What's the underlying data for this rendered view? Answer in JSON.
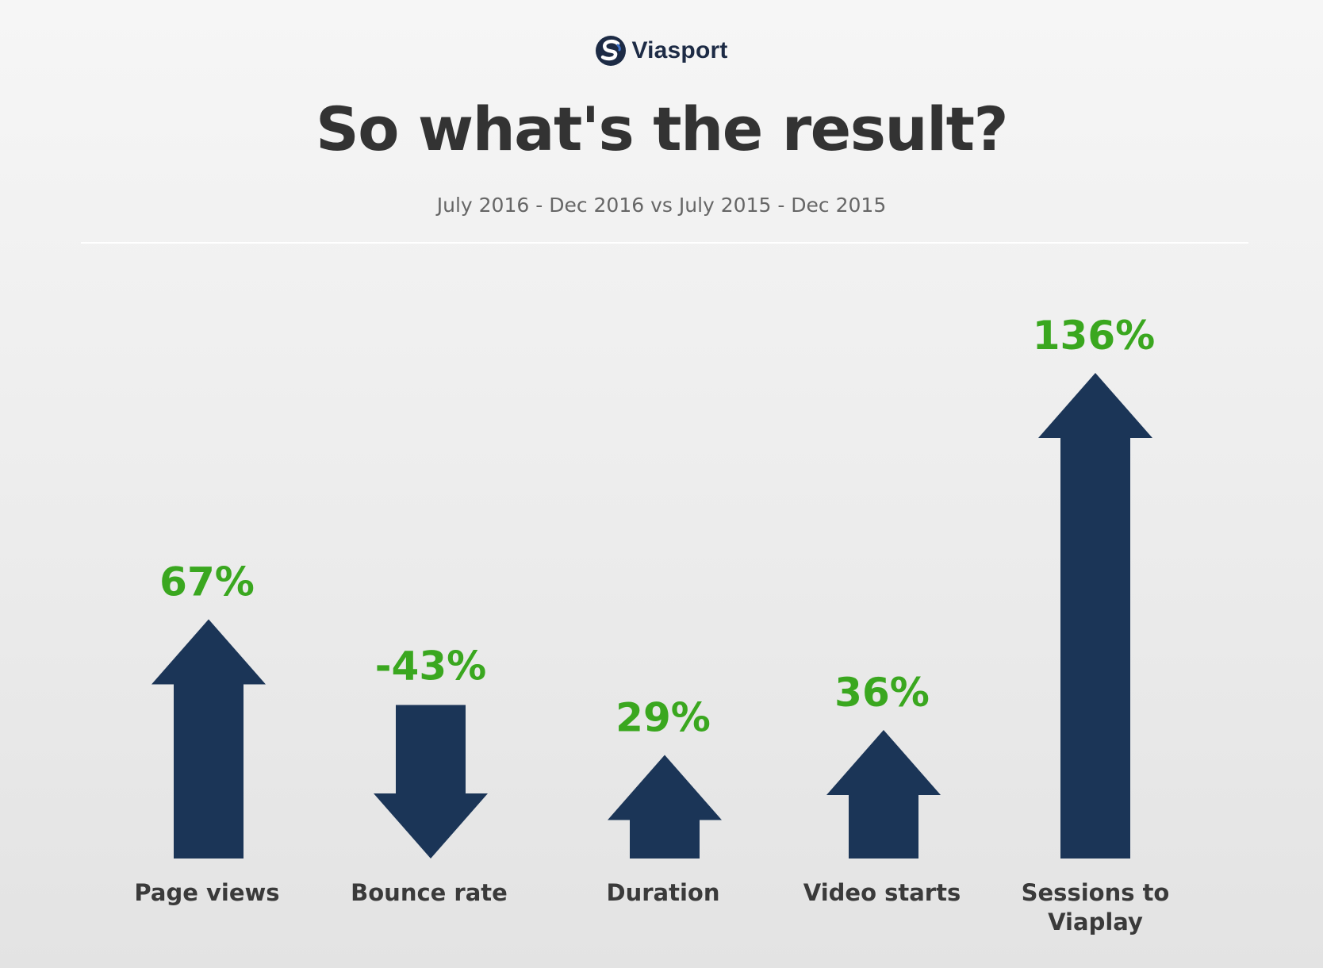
{
  "logo": {
    "text": "Viasport",
    "icon": "viasport-logo-icon"
  },
  "title": "So what's the result?",
  "subtitle": "July 2016 - Dec 2016 vs July 2015 - Dec 2015",
  "colors": {
    "arrow": "#1b3557",
    "value_label": "#3aa71f",
    "category_label": "#3a3a3a",
    "title": "#333333",
    "subtitle": "#666666"
  },
  "chart_data": {
    "type": "bar",
    "categories": [
      "Page views",
      "Bounce rate",
      "Duration",
      "Video starts",
      "Sessions to Viaplay"
    ],
    "values": [
      67,
      -43,
      29,
      36,
      136
    ],
    "value_labels": [
      "67%",
      "-43%",
      "29%",
      "36%",
      "136%"
    ],
    "unit": "%",
    "title": "So what's the result?",
    "subtitle": "July 2016 - Dec 2016 vs July 2015 - Dec 2015",
    "grid": false,
    "legend": "none"
  }
}
